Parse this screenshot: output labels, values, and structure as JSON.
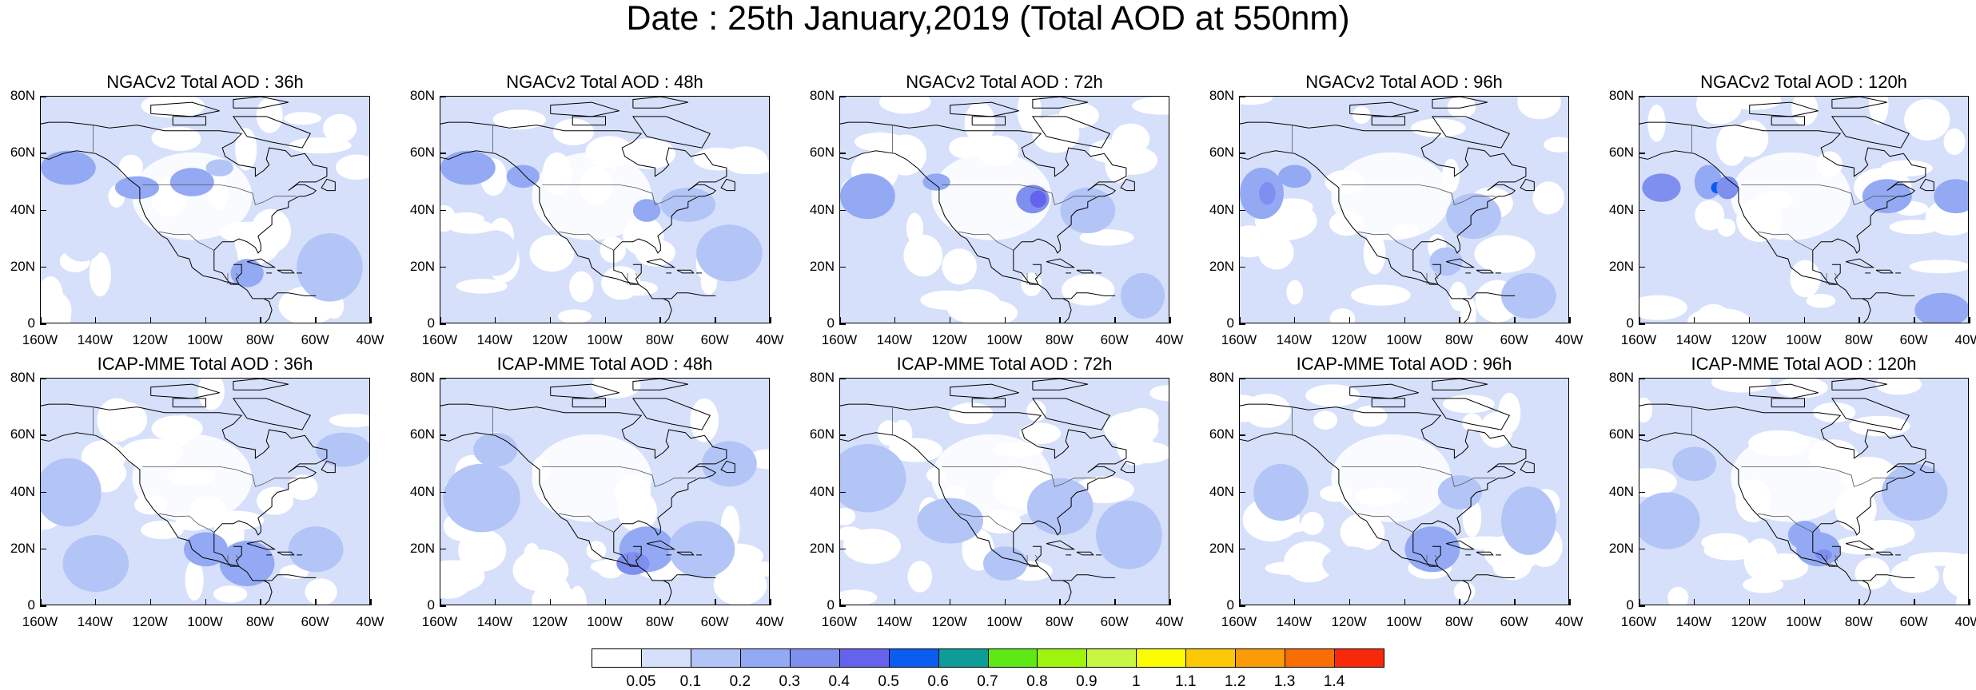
{
  "title": "Date : 25th January,2019 (Total AOD at 550nm)",
  "lat_labels": [
    "80N",
    "60N",
    "40N",
    "20N",
    "0"
  ],
  "lon_labels": [
    "160W",
    "140W",
    "120W",
    "100W",
    "80W",
    "60W",
    "40W"
  ],
  "panels": [
    {
      "title": "NGACv2 Total AOD : 36h",
      "model": "NGACv2",
      "hour": "36h"
    },
    {
      "title": "NGACv2 Total AOD : 48h",
      "model": "NGACv2",
      "hour": "48h"
    },
    {
      "title": "NGACv2 Total AOD : 72h",
      "model": "NGACv2",
      "hour": "72h"
    },
    {
      "title": "NGACv2 Total AOD : 96h",
      "model": "NGACv2",
      "hour": "96h"
    },
    {
      "title": "NGACv2 Total AOD : 120h",
      "model": "NGACv2",
      "hour": "120h"
    },
    {
      "title": "ICAP-MME Total AOD : 36h",
      "model": "ICAP-MME",
      "hour": "36h"
    },
    {
      "title": "ICAP-MME Total AOD : 48h",
      "model": "ICAP-MME",
      "hour": "48h"
    },
    {
      "title": "ICAP-MME Total AOD : 72h",
      "model": "ICAP-MME",
      "hour": "72h"
    },
    {
      "title": "ICAP-MME Total AOD : 96h",
      "model": "ICAP-MME",
      "hour": "96h"
    },
    {
      "title": "ICAP-MME Total AOD : 120h",
      "model": "ICAP-MME",
      "hour": "120h"
    }
  ],
  "colorbar": {
    "labels": [
      "0.05",
      "0.1",
      "0.2",
      "0.3",
      "0.4",
      "0.5",
      "0.6",
      "0.7",
      "0.8",
      "0.9",
      "1",
      "1.1",
      "1.2",
      "1.3",
      "1.4"
    ],
    "colors": [
      "#ffffff",
      "#d6e0fb",
      "#b3c4f7",
      "#93a9f4",
      "#7f8ff0",
      "#6563ee",
      "#0b5cf1",
      "#0e9c98",
      "#5ee816",
      "#9ef40e",
      "#c9f545",
      "#fcfc05",
      "#fcc907",
      "#fa9c08",
      "#f96e04",
      "#f8290a"
    ]
  },
  "chart_data": {
    "type": "heatmap",
    "variable": "Total AOD at 550nm",
    "date": "25th January,2019",
    "x_range": [
      "160W",
      "40W"
    ],
    "y_range": [
      "0",
      "80N"
    ],
    "levels": [
      0.05,
      0.1,
      0.2,
      0.3,
      0.4,
      0.5,
      0.6,
      0.7,
      0.8,
      0.9,
      1,
      1.1,
      1.2,
      1.3,
      1.4
    ]
  }
}
